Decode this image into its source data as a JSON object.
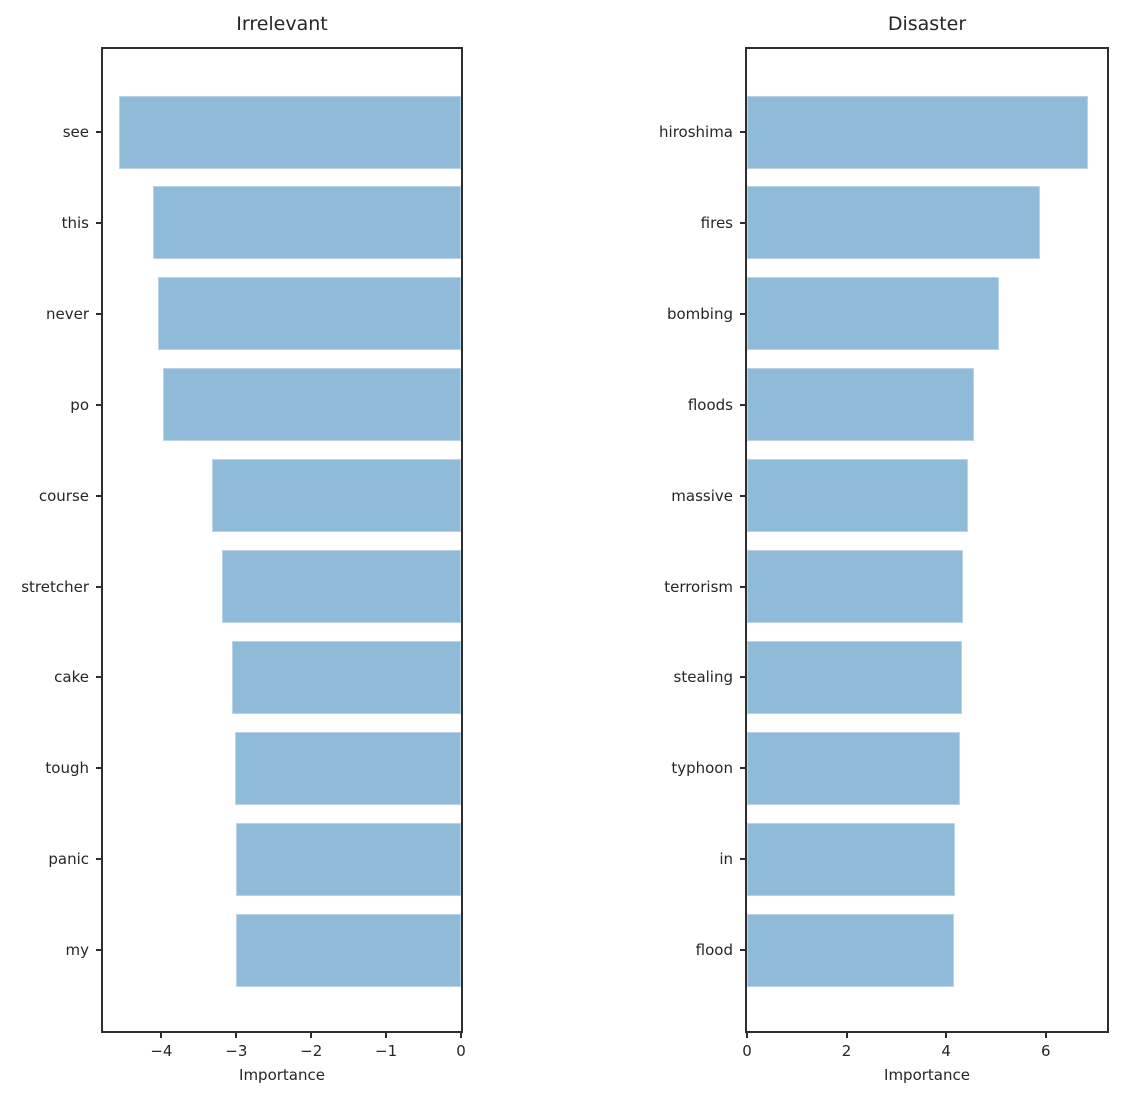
{
  "figure": {
    "background": "#ffffff",
    "bar_color": "#8FBBD9",
    "bar_edge_color": "#b9d4e8",
    "spine_color": "#2e2e2e",
    "text_color": "#262626"
  },
  "chart_data": [
    {
      "type": "bar",
      "orientation": "horizontal",
      "title": "Irrelevant",
      "xlabel": "Importance",
      "legend": "none",
      "grid": false,
      "categories": [
        "see",
        "this",
        "never",
        "po",
        "course",
        "stretcher",
        "cake",
        "tough",
        "panic",
        "my"
      ],
      "values": [
        -4.56,
        -4.11,
        -4.04,
        -3.98,
        -3.32,
        -3.19,
        -3.06,
        -3.02,
        -3.01,
        -3.0
      ],
      "xlim": [
        -4.78,
        0
      ],
      "xticks": [
        {
          "value": -4,
          "label": "−4"
        },
        {
          "value": -3,
          "label": "−3"
        },
        {
          "value": -2,
          "label": "−2"
        },
        {
          "value": -1,
          "label": "−1"
        },
        {
          "value": 0,
          "label": "0"
        }
      ]
    },
    {
      "type": "bar",
      "orientation": "horizontal",
      "title": "Disaster",
      "xlabel": "Importance",
      "legend": "none",
      "grid": false,
      "categories": [
        "hiroshima",
        "fires",
        "bombing",
        "floods",
        "massive",
        "terrorism",
        "stealing",
        "typhoon",
        "in",
        "flood"
      ],
      "values": [
        6.84,
        5.89,
        5.06,
        4.55,
        4.43,
        4.34,
        4.32,
        4.27,
        4.17,
        4.16
      ],
      "xlim": [
        0,
        7.23
      ],
      "xticks": [
        {
          "value": 0,
          "label": "0"
        },
        {
          "value": 2,
          "label": "2"
        },
        {
          "value": 4,
          "label": "4"
        },
        {
          "value": 6,
          "label": "6"
        }
      ]
    }
  ]
}
